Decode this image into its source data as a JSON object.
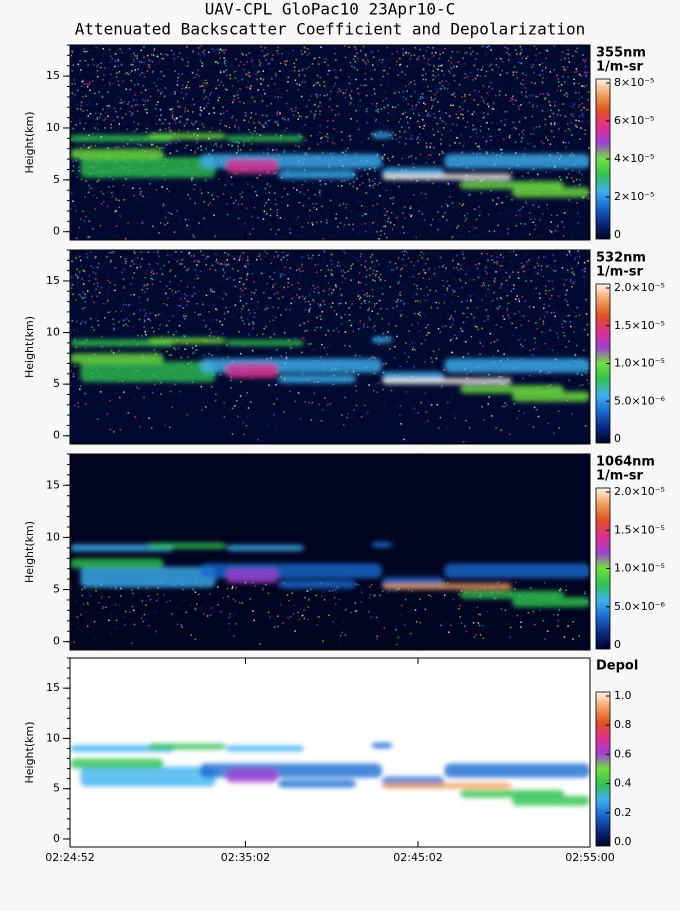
{
  "title": "UAV-CPL GloPac10 23Apr10-C",
  "subtitle": "Attenuated Backscatter Coefficient and Depolarization",
  "colormap": [
    "#000028",
    "#0a2a80",
    "#1a6ad0",
    "#40b0f0",
    "#30c050",
    "#70e040",
    "#a040d0",
    "#e03090",
    "#e05020",
    "#f0a060",
    "#fff4ea"
  ],
  "chart_data": [
    {
      "type": "heatmap",
      "ylabel": "Height(km)",
      "wavelength": "355nm",
      "unit": "1/m-sr",
      "ylim": [
        -0.8,
        18
      ],
      "yticks": [
        0,
        5,
        10,
        15
      ],
      "clim": [
        0,
        8e-05
      ],
      "cticks": [
        0,
        {
          "value": 2e-05,
          "label": "2×10⁻⁵"
        },
        {
          "value": 4e-05,
          "label": "4×10⁻⁵"
        },
        {
          "value": 6e-05,
          "label": "6×10⁻⁵"
        },
        {
          "value": 8e-05,
          "label": "8×10⁻⁵"
        }
      ]
    },
    {
      "type": "heatmap",
      "ylabel": "Height(km)",
      "wavelength": "532nm",
      "unit": "1/m-sr",
      "ylim": [
        -0.8,
        18
      ],
      "yticks": [
        0,
        5,
        10,
        15
      ],
      "clim": [
        0,
        2e-05
      ],
      "cticks": [
        0,
        {
          "value": 5e-06,
          "label": "5.0×10⁻⁶"
        },
        {
          "value": 1e-05,
          "label": "1.0×10⁻⁵"
        },
        {
          "value": 1.5e-05,
          "label": "1.5×10⁻⁵"
        },
        {
          "value": 2e-05,
          "label": "2.0×10⁻⁵"
        }
      ]
    },
    {
      "type": "heatmap",
      "ylabel": "Height(km)",
      "wavelength": "1064nm",
      "unit": "1/m-sr",
      "ylim": [
        -0.8,
        18
      ],
      "yticks": [
        0,
        5,
        10,
        15
      ],
      "clim": [
        0,
        2e-05
      ],
      "cticks": [
        0,
        {
          "value": 5e-06,
          "label": "5.0×10⁻⁶"
        },
        {
          "value": 1e-05,
          "label": "1.0×10⁻⁵"
        },
        {
          "value": 1.5e-05,
          "label": "1.5×10⁻⁵"
        },
        {
          "value": 2e-05,
          "label": "2.0×10⁻⁵"
        }
      ]
    },
    {
      "type": "heatmap",
      "ylabel": "Height(km)",
      "wavelength": "Depol",
      "ylim": [
        -0.8,
        18
      ],
      "yticks": [
        0,
        5,
        10,
        15
      ],
      "clim": [
        0,
        1
      ],
      "cticks": [
        {
          "value": 0,
          "label": "0.0"
        },
        0.2,
        0.4,
        0.6,
        0.8,
        {
          "value": 1,
          "label": "1.0"
        }
      ],
      "xlim": [
        "02:24:52",
        "02:55:00"
      ],
      "xticks": [
        "02:24:52",
        "02:35:02",
        "02:45:02",
        "02:55:00"
      ]
    }
  ]
}
